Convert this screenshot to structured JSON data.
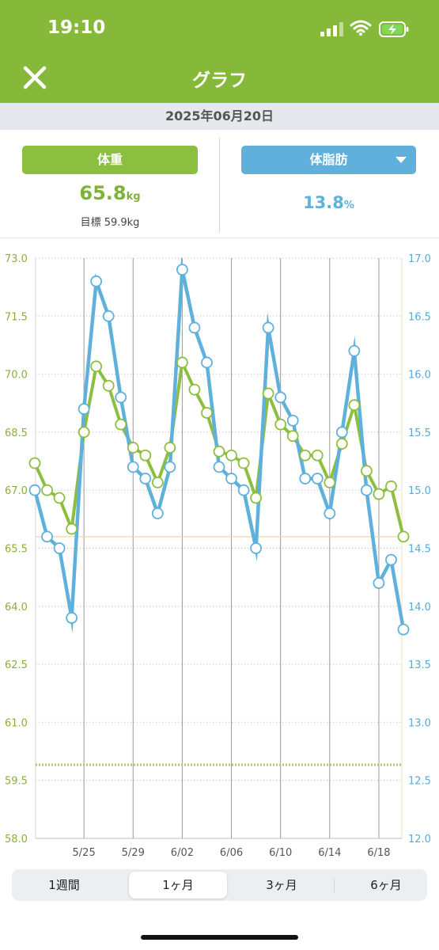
{
  "status_bar": {
    "time": "19:10"
  },
  "header": {
    "title": "グラフ"
  },
  "date": "2025年06月20日",
  "metrics": {
    "weight": {
      "label": "体重",
      "value": "65.8",
      "unit": "kg",
      "goal": "目標 59.9kg"
    },
    "body_fat": {
      "label": "体脂肪",
      "value": "13.8",
      "unit": "%"
    }
  },
  "colors": {
    "header": "#86b93a",
    "weight": "#8cbe3f",
    "body_fat": "#5fb1dc"
  },
  "chart_data": {
    "type": "line",
    "x": [
      "5/21",
      "5/22",
      "5/23",
      "5/24",
      "5/25",
      "5/26",
      "5/27",
      "5/28",
      "5/29",
      "5/30",
      "5/31",
      "6/01",
      "6/02",
      "6/03",
      "6/04",
      "6/05",
      "6/06",
      "6/07",
      "6/08",
      "6/09",
      "6/10",
      "6/11",
      "6/12",
      "6/13",
      "6/14",
      "6/15",
      "6/16",
      "6/17",
      "6/18",
      "6/19",
      "6/20"
    ],
    "x_ticks": [
      "5/25",
      "5/29",
      "6/02",
      "6/06",
      "6/10",
      "6/14",
      "6/18"
    ],
    "y_left": {
      "ticks": [
        "73.0",
        "71.5",
        "70.0",
        "68.5",
        "67.0",
        "65.5",
        "64.0",
        "62.5",
        "61.0",
        "59.5",
        "58.0"
      ],
      "range": [
        58.0,
        73.0
      ]
    },
    "y_right": {
      "ticks": [
        "17.0",
        "16.5",
        "16.0",
        "15.5",
        "15.0",
        "14.5",
        "14.0",
        "13.5",
        "13.0",
        "12.5",
        "12.0"
      ],
      "range": [
        12.0,
        17.0
      ]
    },
    "series": [
      {
        "axis": "left",
        "color": "#8cbe3f",
        "values": [
          67.7,
          67.0,
          66.8,
          66.0,
          68.5,
          70.2,
          69.7,
          68.7,
          68.1,
          67.9,
          67.2,
          68.1,
          70.3,
          69.6,
          69.0,
          68.0,
          67.9,
          67.7,
          66.8,
          69.5,
          68.7,
          68.4,
          67.9,
          67.9,
          67.2,
          68.2,
          69.2,
          67.5,
          66.9,
          67.1,
          65.8
        ]
      },
      {
        "axis": "right",
        "color": "#5fb1dc",
        "values": [
          15.0,
          14.6,
          14.5,
          13.9,
          15.7,
          16.8,
          16.5,
          15.8,
          15.2,
          15.1,
          14.8,
          15.2,
          16.9,
          16.4,
          16.1,
          15.2,
          15.1,
          15.0,
          14.5,
          16.4,
          15.8,
          15.6,
          15.1,
          15.1,
          14.8,
          15.5,
          16.2,
          15.0,
          14.2,
          14.4,
          13.8
        ]
      }
    ],
    "reference_lines": [
      {
        "axis": "left",
        "value": 65.8,
        "style": "solid",
        "color": "#f0d9a0"
      },
      {
        "axis": "left",
        "value": 59.9,
        "style": "dotted",
        "color": "#a9c970"
      }
    ]
  },
  "period_tabs": [
    {
      "label": "1週間",
      "active": false
    },
    {
      "label": "1ヶ月",
      "active": true
    },
    {
      "label": "3ヶ月",
      "active": false
    },
    {
      "label": "6ヶ月",
      "active": false
    }
  ]
}
